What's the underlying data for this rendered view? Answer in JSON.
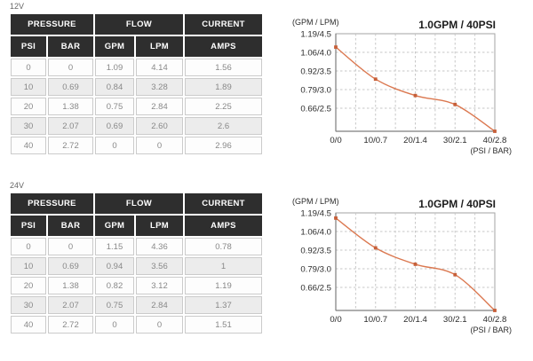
{
  "colors": {
    "line": "#db7850",
    "marker": "#c75f38",
    "grid": "#c7c7c7",
    "box": "#a3a3a3",
    "axis": "#7d7d7d",
    "header_bg": "#2e2e2e",
    "header_text": "#ffffff",
    "row_alt_bg": "#ececec",
    "cell_text": "#888888",
    "tick_text": "#2b2b2b",
    "title_text": "#1c1c1c"
  },
  "tables": [
    {
      "label": "12V",
      "col_groups": [
        "PRESSURE",
        "FLOW",
        "CURRENT"
      ],
      "sub_headers": [
        "PSI",
        "BAR",
        "GPM",
        "LPM",
        "AMPS"
      ],
      "rows": [
        [
          "0",
          "0",
          "1.09",
          "4.14",
          "1.56"
        ],
        [
          "10",
          "0.69",
          "0.84",
          "3.28",
          "1.89"
        ],
        [
          "20",
          "1.38",
          "0.75",
          "2.84",
          "2.25"
        ],
        [
          "30",
          "2.07",
          "0.69",
          "2.60",
          "2.6"
        ],
        [
          "40",
          "2.72",
          "0",
          "0",
          "2.96"
        ]
      ]
    },
    {
      "label": "24V",
      "col_groups": [
        "PRESSURE",
        "FLOW",
        "CURRENT"
      ],
      "sub_headers": [
        "PSI",
        "BAR",
        "GPM",
        "LPM",
        "AMPS"
      ],
      "rows": [
        [
          "0",
          "0",
          "1.15",
          "4.36",
          "0.78"
        ],
        [
          "10",
          "0.69",
          "0.94",
          "3.56",
          "1"
        ],
        [
          "20",
          "1.38",
          "0.82",
          "3.12",
          "1.19"
        ],
        [
          "30",
          "2.07",
          "0.75",
          "2.84",
          "1.37"
        ],
        [
          "40",
          "2.72",
          "0",
          "0",
          "1.51"
        ]
      ]
    }
  ],
  "chart_data": [
    {
      "type": "line",
      "title": "1.0GPM / 40PSI",
      "ylabel": "(GPM / LPM)",
      "xlabel": "(PSI / BAR)",
      "x_psi": [
        0,
        10,
        20,
        30,
        40
      ],
      "x_bar": [
        0,
        0.7,
        1.4,
        2.1,
        2.8
      ],
      "series": [
        {
          "name": "12V flow GPM",
          "values": [
            1.09,
            0.84,
            0.75,
            0.69,
            0
          ]
        },
        {
          "name": "12V flow LPM",
          "values": [
            4.14,
            3.28,
            2.84,
            2.6,
            0
          ]
        }
      ],
      "xtick_labels": [
        "0/0",
        "10/0.7",
        "20/1.4",
        "30/2.1",
        "40/2.8"
      ],
      "ytick_labels": [
        "1.19/4.5",
        "1.06/4.0",
        "0.92/3.5",
        "0.79/3.0",
        "0.66/2.5"
      ],
      "yticks_lpm": [
        4.5,
        4.0,
        3.5,
        3.0,
        2.5
      ],
      "ylim_lpm": [
        1.88,
        4.5
      ],
      "grid": "dashed",
      "legend": "none"
    },
    {
      "type": "line",
      "title": "1.0GPM / 40PSI",
      "ylabel": "(GPM / LPM)",
      "xlabel": "(PSI / BAR)",
      "x_psi": [
        0,
        10,
        20,
        30,
        40
      ],
      "x_bar": [
        0,
        0.7,
        1.4,
        2.1,
        2.8
      ],
      "series": [
        {
          "name": "24V flow GPM",
          "values": [
            1.15,
            0.94,
            0.82,
            0.75,
            0
          ]
        },
        {
          "name": "24V flow LPM",
          "values": [
            4.36,
            3.56,
            3.12,
            2.84,
            0
          ]
        }
      ],
      "xtick_labels": [
        "0/0",
        "10/0.7",
        "20/1.4",
        "30/2.1",
        "40/2.8"
      ],
      "ytick_labels": [
        "1.19/4.5",
        "1.06/4.0",
        "0.92/3.5",
        "0.79/3.0",
        "0.66/2.5"
      ],
      "yticks_lpm": [
        4.5,
        4.0,
        3.5,
        3.0,
        2.5
      ],
      "ylim_lpm": [
        1.88,
        4.5
      ],
      "grid": "dashed",
      "legend": "none"
    }
  ]
}
